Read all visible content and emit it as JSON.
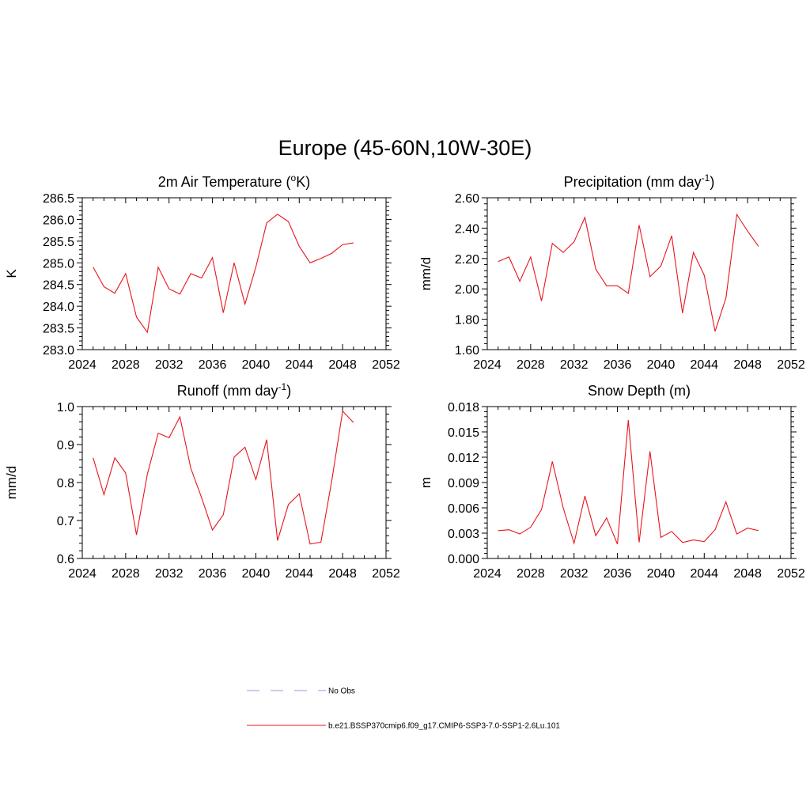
{
  "figure": {
    "title": "Europe (45-60N,10W-30E)"
  },
  "chart_data": [
    {
      "type": "line",
      "title": "2m Air Temperature (°K)",
      "title_parts": {
        "pre": "2m Air Temperature (",
        "sup": "o",
        "post": "K)"
      },
      "ylabel": "K",
      "xlabel": "",
      "xlim": [
        2024,
        2052
      ],
      "ylim": [
        283.0,
        286.5
      ],
      "xticks": [
        "2024",
        "2028",
        "2032",
        "2036",
        "2040",
        "2044",
        "2048",
        "2052"
      ],
      "yticks": [
        "283.0",
        "283.5",
        "284.0",
        "284.5",
        "285.0",
        "285.5",
        "286.0",
        "286.5"
      ],
      "x": [
        2025,
        2026,
        2027,
        2028,
        2029,
        2030,
        2031,
        2032,
        2033,
        2034,
        2035,
        2036,
        2037,
        2038,
        2039,
        2040,
        2041,
        2042,
        2043,
        2044,
        2045,
        2046,
        2047,
        2048,
        2049
      ],
      "series": [
        {
          "name": "b.e21.BSSP370cmip6.f09_g17.CMIP6-SSP3-7.0-SSP1-2.6Lu.101",
          "color": "#e8141d",
          "values": [
            284.9,
            284.45,
            284.3,
            284.75,
            283.75,
            283.4,
            284.9,
            284.4,
            284.28,
            284.75,
            284.65,
            285.12,
            283.85,
            285.0,
            284.05,
            284.9,
            285.92,
            286.12,
            285.95,
            285.38,
            285.0,
            285.1,
            285.22,
            285.42,
            285.46
          ]
        }
      ]
    },
    {
      "type": "line",
      "title": "Precipitation (mm day-1)",
      "title_parts": {
        "pre": "Precipitation (mm day",
        "sup": "-1",
        "post": ")"
      },
      "ylabel": "mm/d",
      "xlabel": "",
      "xlim": [
        2024,
        2052
      ],
      "ylim": [
        1.6,
        2.6
      ],
      "xticks": [
        "2024",
        "2028",
        "2032",
        "2036",
        "2040",
        "2044",
        "2048",
        "2052"
      ],
      "yticks": [
        "1.60",
        "1.80",
        "2.00",
        "2.20",
        "2.40",
        "2.60"
      ],
      "x": [
        2025,
        2026,
        2027,
        2028,
        2029,
        2030,
        2031,
        2032,
        2033,
        2034,
        2035,
        2036,
        2037,
        2038,
        2039,
        2040,
        2041,
        2042,
        2043,
        2044,
        2045,
        2046,
        2047,
        2048,
        2049
      ],
      "series": [
        {
          "name": "b.e21.BSSP370cmip6.f09_g17.CMIP6-SSP3-7.0-SSP1-2.6Lu.101",
          "color": "#e8141d",
          "values": [
            2.18,
            2.21,
            2.05,
            2.21,
            1.92,
            2.3,
            2.24,
            2.31,
            2.47,
            2.13,
            2.02,
            2.02,
            1.97,
            2.42,
            2.08,
            2.15,
            2.35,
            1.84,
            2.24,
            2.09,
            1.72,
            1.94,
            2.49,
            2.38,
            2.28
          ]
        }
      ]
    },
    {
      "type": "line",
      "title": "Runoff (mm day-1)",
      "title_parts": {
        "pre": "Runoff (mm day",
        "sup": "-1",
        "post": ")"
      },
      "ylabel": "mm/d",
      "xlabel": "",
      "xlim": [
        2024,
        2052
      ],
      "ylim": [
        0.6,
        1.0
      ],
      "xticks": [
        "2024",
        "2028",
        "2032",
        "2036",
        "2040",
        "2044",
        "2048",
        "2052"
      ],
      "yticks": [
        "0.6",
        "0.7",
        "0.8",
        "0.9",
        "1.0"
      ],
      "x": [
        2025,
        2026,
        2027,
        2028,
        2029,
        2030,
        2031,
        2032,
        2033,
        2034,
        2035,
        2036,
        2037,
        2038,
        2039,
        2040,
        2041,
        2042,
        2043,
        2044,
        2045,
        2046,
        2047,
        2048,
        2049
      ],
      "series": [
        {
          "name": "b.e21.BSSP370cmip6.f09_g17.CMIP6-SSP3-7.0-SSP1-2.6Lu.101",
          "color": "#e8141d",
          "values": [
            0.865,
            0.768,
            0.865,
            0.825,
            0.662,
            0.822,
            0.93,
            0.918,
            0.973,
            0.838,
            0.76,
            0.675,
            0.715,
            0.867,
            0.893,
            0.808,
            0.913,
            0.647,
            0.742,
            0.77,
            0.638,
            0.643,
            0.805,
            0.988,
            0.958
          ]
        }
      ]
    },
    {
      "type": "line",
      "title": "Snow Depth (m)",
      "title_parts": {
        "pre": "Snow Depth (m)",
        "sup": "",
        "post": ""
      },
      "ylabel": "m",
      "xlabel": "",
      "xlim": [
        2024,
        2052
      ],
      "ylim": [
        0.0,
        0.018
      ],
      "xticks": [
        "2024",
        "2028",
        "2032",
        "2036",
        "2040",
        "2044",
        "2048",
        "2052"
      ],
      "yticks": [
        "0.000",
        "0.003",
        "0.006",
        "0.009",
        "0.012",
        "0.015",
        "0.018"
      ],
      "x": [
        2025,
        2026,
        2027,
        2028,
        2029,
        2030,
        2031,
        2032,
        2033,
        2034,
        2035,
        2036,
        2037,
        2038,
        2039,
        2040,
        2041,
        2042,
        2043,
        2044,
        2045,
        2046,
        2047,
        2048,
        2049
      ],
      "series": [
        {
          "name": "b.e21.BSSP370cmip6.f09_g17.CMIP6-SSP3-7.0-SSP1-2.6Lu.101",
          "color": "#e8141d",
          "values": [
            0.0033,
            0.0034,
            0.0029,
            0.0037,
            0.0058,
            0.0115,
            0.006,
            0.0018,
            0.0074,
            0.0027,
            0.0048,
            0.0017,
            0.0164,
            0.0019,
            0.0127,
            0.0025,
            0.0032,
            0.0019,
            0.0022,
            0.002,
            0.0034,
            0.0067,
            0.0029,
            0.0036,
            0.0033
          ]
        }
      ]
    }
  ],
  "legend": {
    "items": [
      {
        "label": "No Obs",
        "color": "#9999dd",
        "style": "dashed"
      },
      {
        "label": "b.e21.BSSP370cmip6.f09_g17.CMIP6-SSP3-7.0-SSP1-2.6Lu.101",
        "color": "#e8141d",
        "style": "solid"
      }
    ]
  }
}
